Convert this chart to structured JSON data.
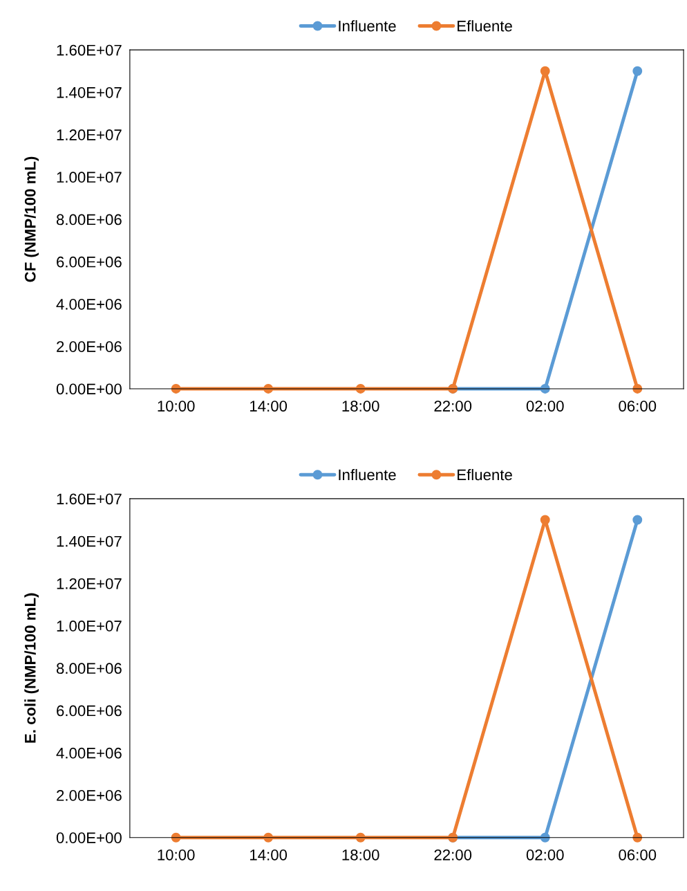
{
  "chart_data": [
    {
      "type": "line",
      "ylabel": "CF (NMP/100 mL)",
      "categories": [
        "10:00",
        "14:00",
        "18:00",
        "22:00",
        "02:00",
        "06:00"
      ],
      "series": [
        {
          "name": "Influente",
          "color": "#5b9bd5",
          "values": [
            null,
            null,
            null,
            0,
            0,
            15000000
          ]
        },
        {
          "name": "Efluente",
          "color": "#ed7d31",
          "values": [
            0,
            0,
            0,
            0,
            15000000,
            0
          ]
        }
      ],
      "ylim": [
        0,
        16000000
      ],
      "yticks": [
        {
          "value": 0,
          "label": "0.00E+00"
        },
        {
          "value": 2000000,
          "label": "2.00E+06"
        },
        {
          "value": 4000000,
          "label": "4.00E+06"
        },
        {
          "value": 6000000,
          "label": "6.00E+06"
        },
        {
          "value": 8000000,
          "label": "8.00E+06"
        },
        {
          "value": 10000000,
          "label": "1.00E+07"
        },
        {
          "value": 12000000,
          "label": "1.20E+07"
        },
        {
          "value": 14000000,
          "label": "1.40E+07"
        },
        {
          "value": 16000000,
          "label": "1.60E+07"
        }
      ],
      "legend": "top",
      "marker": "circle",
      "line_style": "solid",
      "grid": false
    },
    {
      "type": "line",
      "ylabel": "E. coli (NMP/100 mL)",
      "categories": [
        "10:00",
        "14:00",
        "18:00",
        "22:00",
        "02:00",
        "06:00"
      ],
      "series": [
        {
          "name": "Influente",
          "color": "#5b9bd5",
          "values": [
            null,
            null,
            null,
            0,
            0,
            15000000
          ]
        },
        {
          "name": "Efluente",
          "color": "#ed7d31",
          "values": [
            0,
            0,
            0,
            0,
            15000000,
            0
          ]
        }
      ],
      "ylim": [
        0,
        16000000
      ],
      "yticks": [
        {
          "value": 0,
          "label": "0.00E+00"
        },
        {
          "value": 2000000,
          "label": "2.00E+06"
        },
        {
          "value": 4000000,
          "label": "4.00E+06"
        },
        {
          "value": 6000000,
          "label": "6.00E+06"
        },
        {
          "value": 8000000,
          "label": "8.00E+06"
        },
        {
          "value": 10000000,
          "label": "1.00E+07"
        },
        {
          "value": 12000000,
          "label": "1.20E+07"
        },
        {
          "value": 14000000,
          "label": "1.40E+07"
        },
        {
          "value": 16000000,
          "label": "1.60E+07"
        }
      ],
      "legend": "top",
      "marker": "circle",
      "line_style": "solid",
      "grid": false
    }
  ]
}
